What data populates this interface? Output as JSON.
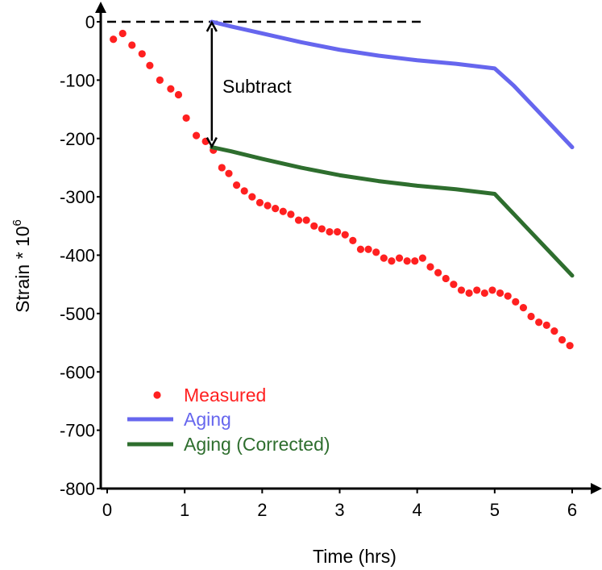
{
  "chart_data": {
    "type": "line",
    "title": "",
    "xlabel": "Time (hrs)",
    "ylabel": "Strain * 10",
    "ylabel_superscript": "6",
    "xlim": [
      0,
      6.1
    ],
    "ylim": [
      -800,
      20
    ],
    "xticks": [
      0,
      1,
      2,
      3,
      4,
      5,
      6
    ],
    "yticks": [
      0,
      -100,
      -200,
      -300,
      -400,
      -500,
      -600,
      -700,
      -800
    ],
    "grid": false,
    "legend_position": "bottom-left",
    "annotation": {
      "text": "Subtract",
      "x": 1.35,
      "from_y": 0,
      "to_y": -215
    },
    "reference_line": {
      "y": 0,
      "x": [
        0,
        4.05
      ],
      "style": "dashed"
    },
    "series": [
      {
        "name": "Measured",
        "kind": "scatter",
        "color": "#ff2020",
        "x": [
          0.08,
          0.2,
          0.32,
          0.45,
          0.55,
          0.68,
          0.82,
          0.92,
          1.02,
          1.15,
          1.27,
          1.37,
          1.48,
          1.57,
          1.67,
          1.77,
          1.87,
          1.97,
          2.07,
          2.17,
          2.27,
          2.37,
          2.47,
          2.57,
          2.67,
          2.77,
          2.87,
          2.97,
          3.07,
          3.17,
          3.27,
          3.37,
          3.47,
          3.57,
          3.67,
          3.77,
          3.87,
          3.97,
          4.07,
          4.17,
          4.27,
          4.37,
          4.47,
          4.57,
          4.67,
          4.77,
          4.87,
          4.97,
          5.07,
          5.17,
          5.27,
          5.37,
          5.47,
          5.57,
          5.67,
          5.77,
          5.87,
          5.97
        ],
        "y": [
          -30,
          -20,
          -40,
          -55,
          -75,
          -100,
          -115,
          -125,
          -165,
          -195,
          -205,
          -220,
          -250,
          -260,
          -280,
          -290,
          -300,
          -310,
          -315,
          -320,
          -325,
          -330,
          -340,
          -340,
          -350,
          -355,
          -360,
          -360,
          -365,
          -375,
          -390,
          -390,
          -395,
          -405,
          -410,
          -405,
          -410,
          -410,
          -405,
          -420,
          -430,
          -440,
          -450,
          -460,
          -465,
          -460,
          -465,
          -460,
          -465,
          -470,
          -480,
          -490,
          -505,
          -515,
          -520,
          -530,
          -545,
          -555
        ]
      },
      {
        "name": "Aging",
        "kind": "line",
        "color": "#6666ee",
        "x": [
          1.35,
          1.6,
          2.0,
          2.5,
          3.0,
          3.5,
          4.0,
          4.5,
          5.0,
          5.25,
          5.5,
          5.75,
          6.0
        ],
        "y": [
          0,
          -8,
          -20,
          -35,
          -48,
          -58,
          -66,
          -72,
          -80,
          -110,
          -145,
          -180,
          -215
        ]
      },
      {
        "name": "Aging (Corrected)",
        "kind": "line",
        "color": "#2e6e2e",
        "x": [
          1.35,
          1.6,
          2.0,
          2.5,
          3.0,
          3.5,
          4.0,
          4.5,
          5.0,
          5.25,
          5.5,
          5.75,
          6.0
        ],
        "y": [
          -215,
          -222,
          -235,
          -250,
          -263,
          -273,
          -281,
          -287,
          -295,
          -330,
          -365,
          -400,
          -435
        ]
      }
    ]
  }
}
